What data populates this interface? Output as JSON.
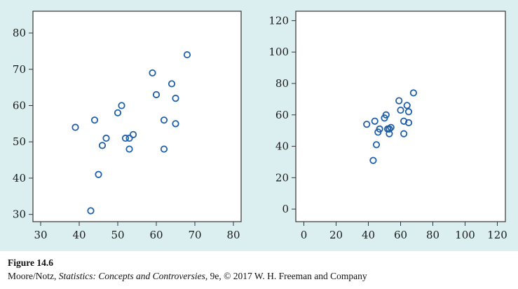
{
  "caption": {
    "figure_label": "Figure 14.6",
    "source_authors": "Moore/Notz, ",
    "source_title": "Statistics: Concepts and Controversies",
    "source_rest": ", 9e, © 2017 W. H. Freeman and Company"
  },
  "colors": {
    "panel_background": "#dceff0",
    "plot_background": "#ffffff",
    "marker": "#1f5fa8",
    "axis": "#333333"
  },
  "chart_data": [
    {
      "type": "scatter",
      "title": "",
      "xlabel": "",
      "ylabel": "",
      "xlim": [
        28,
        82
      ],
      "ylim": [
        28,
        86
      ],
      "xticks": [
        30,
        40,
        50,
        60,
        70,
        80
      ],
      "yticks": [
        30,
        40,
        50,
        60,
        70,
        80
      ],
      "grid": false,
      "marker": "open-circle",
      "points": [
        {
          "x": 39,
          "y": 54
        },
        {
          "x": 43,
          "y": 31
        },
        {
          "x": 44,
          "y": 56
        },
        {
          "x": 45,
          "y": 41
        },
        {
          "x": 46,
          "y": 49
        },
        {
          "x": 47,
          "y": 51
        },
        {
          "x": 50,
          "y": 58
        },
        {
          "x": 51,
          "y": 60
        },
        {
          "x": 52,
          "y": 51
        },
        {
          "x": 53,
          "y": 48
        },
        {
          "x": 53,
          "y": 51
        },
        {
          "x": 54,
          "y": 52
        },
        {
          "x": 59,
          "y": 69
        },
        {
          "x": 60,
          "y": 63
        },
        {
          "x": 62,
          "y": 56
        },
        {
          "x": 62,
          "y": 48
        },
        {
          "x": 64,
          "y": 66
        },
        {
          "x": 65,
          "y": 62
        },
        {
          "x": 65,
          "y": 55
        },
        {
          "x": 68,
          "y": 74
        }
      ]
    },
    {
      "type": "scatter",
      "title": "",
      "xlabel": "",
      "ylabel": "",
      "xlim": [
        -5,
        125
      ],
      "ylim": [
        -8,
        126
      ],
      "xticks": [
        0,
        20,
        40,
        60,
        80,
        100,
        120
      ],
      "yticks": [
        0,
        20,
        40,
        60,
        80,
        100,
        120
      ],
      "grid": false,
      "marker": "open-circle",
      "points": [
        {
          "x": 39,
          "y": 54
        },
        {
          "x": 43,
          "y": 31
        },
        {
          "x": 44,
          "y": 56
        },
        {
          "x": 45,
          "y": 41
        },
        {
          "x": 46,
          "y": 49
        },
        {
          "x": 47,
          "y": 51
        },
        {
          "x": 50,
          "y": 58
        },
        {
          "x": 51,
          "y": 60
        },
        {
          "x": 52,
          "y": 51
        },
        {
          "x": 53,
          "y": 48
        },
        {
          "x": 53,
          "y": 51
        },
        {
          "x": 54,
          "y": 52
        },
        {
          "x": 59,
          "y": 69
        },
        {
          "x": 60,
          "y": 63
        },
        {
          "x": 62,
          "y": 56
        },
        {
          "x": 62,
          "y": 48
        },
        {
          "x": 64,
          "y": 66
        },
        {
          "x": 65,
          "y": 62
        },
        {
          "x": 65,
          "y": 55
        },
        {
          "x": 68,
          "y": 74
        }
      ]
    }
  ]
}
